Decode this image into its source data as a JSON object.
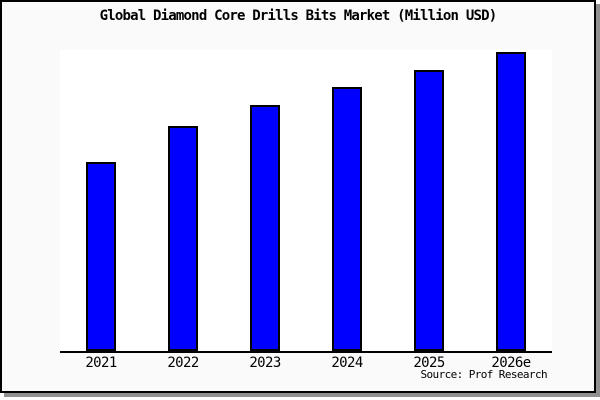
{
  "colors": {
    "bar_fill": "#0000FF",
    "bar_border": "#000000",
    "panel_background": "#FAFAFA",
    "plot_background": "#FFFFFF",
    "axis": "#000000",
    "panel_border": "#000000",
    "panel_shadow": "#909090",
    "text": "#000000"
  },
  "chart_data": {
    "type": "bar",
    "title": "Global Diamond Core Drills Bits Market (Million USD)",
    "categories": [
      "2021",
      "2022",
      "2023",
      "2024",
      "2025",
      "2026e"
    ],
    "values": [
      63,
      75,
      82,
      88,
      94,
      100
    ],
    "values_note": "relative scale estimated from bar pixel heights; chart shows no y-axis tick labels",
    "xlabel": "",
    "ylabel": "",
    "ylim": [
      0,
      100.5
    ],
    "grid": false,
    "legend": false,
    "y_axis_visible": false,
    "annotation": "Source: Prof Research"
  }
}
